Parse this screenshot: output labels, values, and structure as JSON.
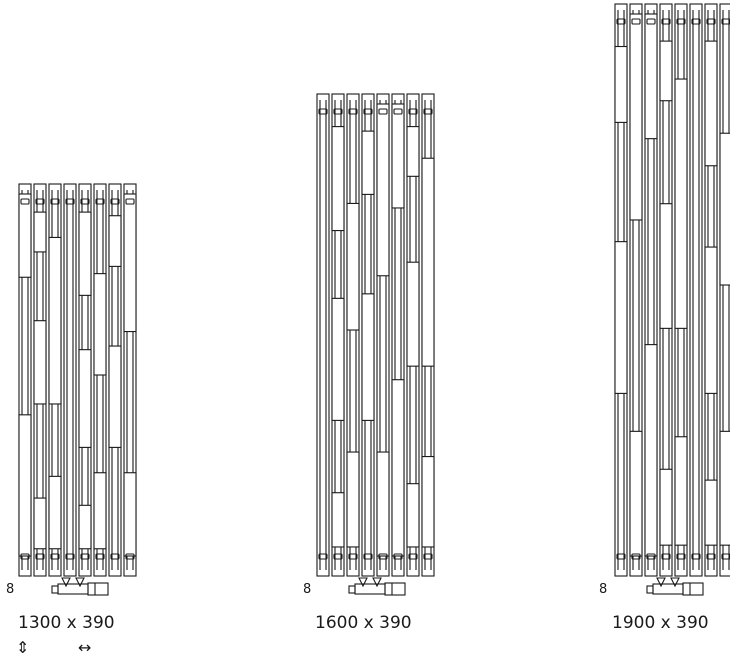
{
  "models": [
    {
      "size_label": "1300 x 390",
      "valve_marker": "8"
    },
    {
      "size_label": "1600 x 390",
      "valve_marker": "8"
    },
    {
      "size_label": "1900 x 390",
      "valve_marker": "8"
    }
  ],
  "legend": {
    "height_icon": "vertical-double-arrow-icon",
    "width_icon": "horizontal-double-arrow-icon",
    "height_glyph": "⇕",
    "width_glyph": "↔"
  },
  "colors": {
    "line": "#1a1a1a",
    "background": "#ffffff"
  }
}
